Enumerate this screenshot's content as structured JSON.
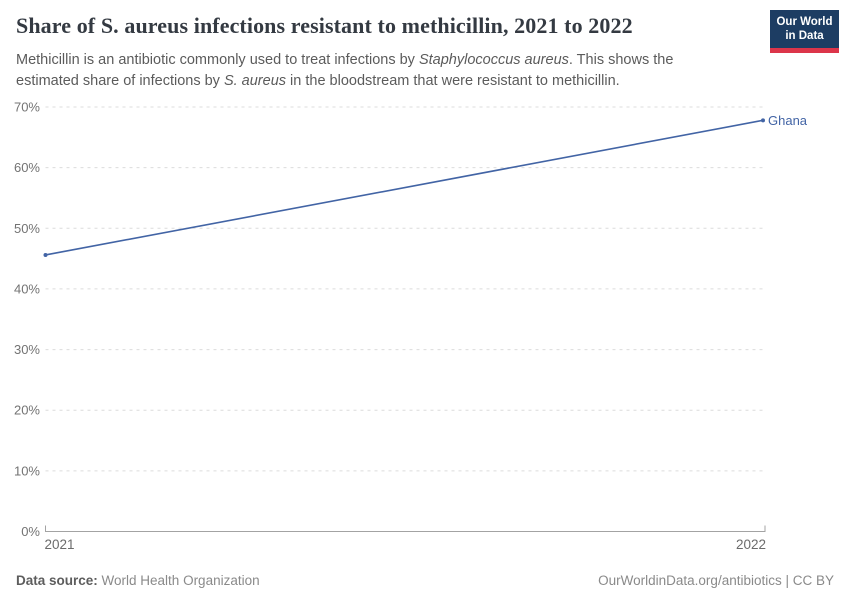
{
  "header": {
    "title": "Share of S. aureus infections resistant to methicillin, 2021 to 2022",
    "subtitle_segments": [
      {
        "text": "Methicillin is an antibiotic commonly used to treat infections by ",
        "italic": false
      },
      {
        "text": "Staphylococcus aureus",
        "italic": true
      },
      {
        "text": ". This shows the estimated share of infections by ",
        "italic": false
      },
      {
        "text": "S. aureus",
        "italic": true
      },
      {
        "text": " in the bloodstream that were resistant to methicillin.",
        "italic": false
      }
    ],
    "logo": {
      "line1": "Our World",
      "line2": "in Data",
      "bg_color": "#1d3d63",
      "accent_color": "#dc354a"
    }
  },
  "chart_data": {
    "type": "line",
    "title": "Share of S. aureus infections resistant to methicillin, 2021 to 2022",
    "x": [
      "2021",
      "2022"
    ],
    "series": [
      {
        "name": "Ghana",
        "values": [
          45.6,
          67.8
        ],
        "color": "#4264a5"
      }
    ],
    "ylim": [
      0,
      70
    ],
    "yticks": [
      0,
      10,
      20,
      30,
      40,
      50,
      60,
      70
    ],
    "ytick_suffix": "%",
    "xlabel": "",
    "ylabel": "",
    "grid": "horizontal-dashed",
    "legend": "end-of-line-label",
    "colors": {
      "gridline": "#dcdcdc",
      "axis": "#a3a3a3",
      "tick_label": "#737373",
      "x_label": "#6b6b6b"
    }
  },
  "footer": {
    "source_label": "Data source:",
    "source_value": " World Health Organization",
    "right_text": "OurWorldinData.org/antibiotics | CC BY"
  }
}
